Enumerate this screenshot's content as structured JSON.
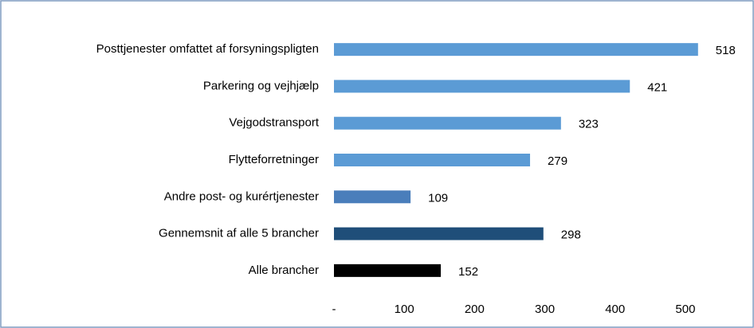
{
  "chart_data": {
    "type": "bar",
    "orientation": "horizontal",
    "categories": [
      "Posttjenester omfattet af forsyningspligten",
      "Parkering og vejhjælp",
      "Vejgodstransport",
      "Flytteforretninger",
      "Andre post- og kurértjenester",
      "Gennemsnit af alle 5 brancher",
      "Alle brancher"
    ],
    "values": [
      518,
      421,
      323,
      279,
      109,
      298,
      152
    ],
    "colors": [
      "#5b9bd5",
      "#5b9bd5",
      "#5b9bd5",
      "#5b9bd5",
      "#4a7ebb",
      "#1f4e79",
      "#000000"
    ],
    "xlim": [
      0,
      550
    ],
    "xticks": [
      {
        "value": 0,
        "label": "-"
      },
      100,
      200,
      300,
      400,
      500
    ],
    "grid": false
  }
}
